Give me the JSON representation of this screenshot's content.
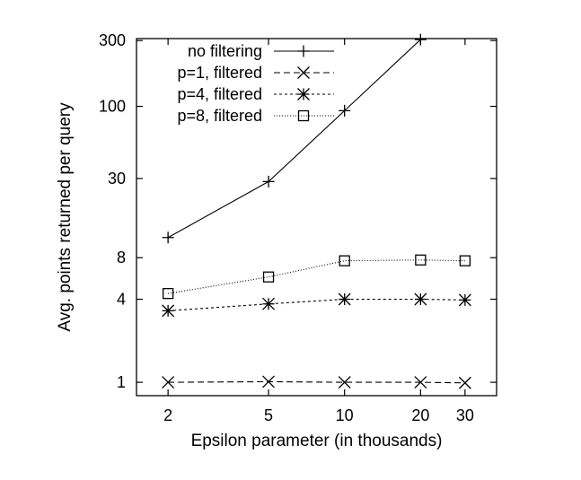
{
  "chart_data": {
    "type": "line",
    "xscale": "log",
    "yscale": "log",
    "xlabel": "Epsilon parameter (in thousands)",
    "ylabel": "Avg. points returned per query",
    "xlim": [
      1.5,
      40
    ],
    "ylim": [
      0.8,
      310
    ],
    "xticks": [
      2,
      5,
      10,
      20,
      30
    ],
    "xtick_labels": [
      "2",
      "5",
      "10",
      "20",
      "30"
    ],
    "yticks": [
      1,
      4,
      8,
      30,
      100,
      300
    ],
    "ytick_labels": [
      "1",
      "4",
      "8",
      "30",
      "100",
      "300"
    ],
    "legend_position": "top-left",
    "series": [
      {
        "name": "no filtering",
        "marker": "plus",
        "dash": "",
        "x": [
          2,
          5,
          10,
          20
        ],
        "values": [
          11.2,
          28.5,
          93,
          305
        ]
      },
      {
        "name": "p=1, filtered",
        "marker": "cross",
        "dash": "7,4",
        "x": [
          2,
          5,
          10,
          20,
          30
        ],
        "values": [
          1.0,
          1.01,
          1.0,
          1.0,
          0.99
        ]
      },
      {
        "name": "p=4, filtered",
        "marker": "star",
        "dash": "3,3",
        "x": [
          2,
          5,
          10,
          20,
          30
        ],
        "values": [
          3.3,
          3.7,
          4.0,
          4.0,
          3.95
        ]
      },
      {
        "name": "p=8, filtered",
        "marker": "square",
        "dash": "1,2",
        "x": [
          2,
          5,
          10,
          20,
          30
        ],
        "values": [
          4.4,
          5.8,
          7.6,
          7.7,
          7.6
        ]
      }
    ]
  }
}
